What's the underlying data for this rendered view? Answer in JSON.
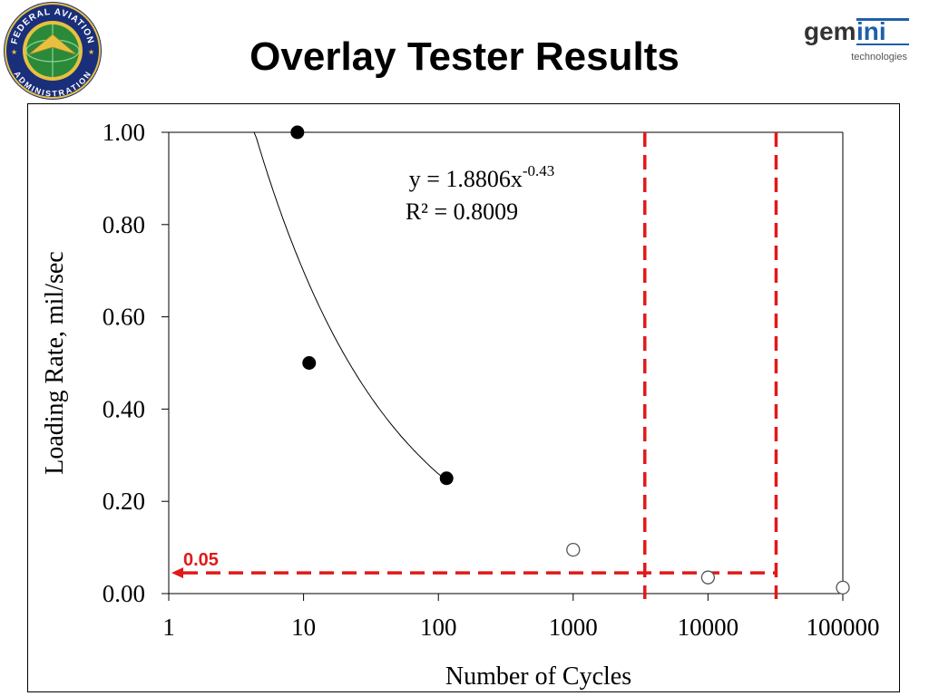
{
  "slide": {
    "title": "Overlay Tester Results"
  },
  "logos": {
    "faa": {
      "text_top": "FEDERAL AVIATION",
      "text_bottom": "ADMINISTRATION",
      "icon": "faa-seal-icon"
    },
    "gemini": {
      "wordmark_left": "gem",
      "wordmark_right": "ini",
      "tagline": "technologies",
      "icon": "gemini-logo-icon"
    }
  },
  "colors": {
    "highlight": "#e11919",
    "marker": "#000000"
  },
  "chart_data": {
    "type": "scatter",
    "x_scale": "log",
    "xlim": [
      1,
      100000
    ],
    "ylim": [
      0,
      1
    ],
    "xlabel": "Number of Cycles",
    "ylabel": "Loading Rate, mil/sec",
    "x_ticks": [
      "1",
      "10",
      "100",
      "1000",
      "10000",
      "100000"
    ],
    "y_ticks": [
      "0.00",
      "0.20",
      "0.40",
      "0.60",
      "0.80",
      "1.00"
    ],
    "grid": false,
    "series": [
      {
        "marker": "filled-circle",
        "points": [
          [
            9,
            1.0
          ],
          [
            11,
            0.5
          ],
          [
            115,
            0.25
          ]
        ]
      },
      {
        "marker": "open-circle",
        "points": [
          [
            1000,
            0.095
          ],
          [
            10000,
            0.035
          ],
          [
            100000,
            0.013
          ]
        ]
      }
    ],
    "trendline": {
      "equation_main": "y = 1.8806x",
      "equation_exponent": "-0.43",
      "r_squared": "R² = 0.8009",
      "coefficient": 1.8806,
      "exponent": -0.43,
      "x_range": [
        4.3,
        115
      ]
    },
    "annotations": {
      "threshold_label": "0.05",
      "threshold_y": 0.045,
      "cycle_lines_x": [
        3400,
        32000
      ]
    }
  }
}
